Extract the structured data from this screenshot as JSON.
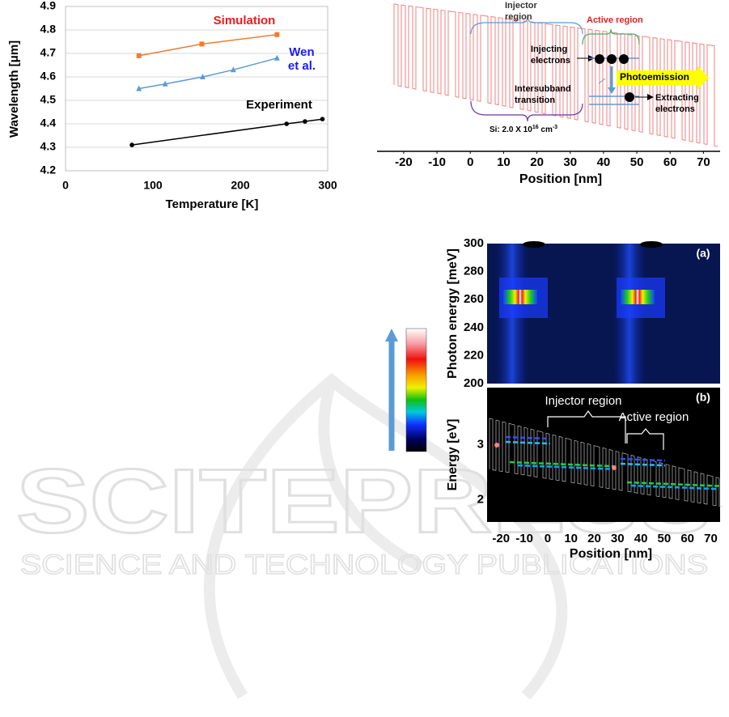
{
  "chart_data": [
    {
      "type": "line",
      "xlabel": "Temperature  [K]",
      "ylabel": "Wavelength [μm]",
      "xlim": [
        0,
        300
      ],
      "xticks": [
        0,
        100,
        200,
        300
      ],
      "ylim": [
        4.2,
        4.9
      ],
      "yticks": [
        4.2,
        4.3,
        4.4,
        4.5,
        4.6,
        4.7,
        4.8,
        4.9
      ],
      "grid": true,
      "series": [
        {
          "name": "Simulation",
          "color": "#ed7d31",
          "label_color": "#ee1c1c",
          "marker": "square",
          "x": [
            84,
            156,
            242
          ],
          "values": [
            4.69,
            4.74,
            4.78
          ]
        },
        {
          "name": "Wen\net al.",
          "color": "#5b9bd5",
          "label_color": "#1a1aff",
          "marker": "triangle",
          "x": [
            84,
            114,
            157,
            192,
            242
          ],
          "values": [
            4.55,
            4.57,
            4.6,
            4.63,
            4.68
          ]
        },
        {
          "name": "Experiment",
          "color": "#000000",
          "label_color": "#000000",
          "marker": "circle",
          "x": [
            76,
            253,
            274,
            294
          ],
          "values": [
            4.31,
            4.4,
            4.41,
            4.42
          ]
        }
      ]
    },
    {
      "type": "band-diagram",
      "xlabel": "Position [nm]",
      "xlim": [
        -28,
        75
      ],
      "xticks": [
        -20,
        -10,
        0,
        10,
        20,
        30,
        40,
        50,
        60,
        70
      ],
      "annotations": {
        "injector": "Injector\nregion",
        "active": "Active region",
        "injecting": "Injecting\nelectrons",
        "transition": "Intersubband\ntransition",
        "photoemission": "Photoemission",
        "extracting": "Extracting\nelectrons",
        "doping": "Si: 2.0 X 10",
        "doping_exp": "16",
        "doping_unit": " cm",
        "doping_unit_exp": "-3"
      }
    },
    {
      "type": "heatmap",
      "panel": "(a)",
      "ylabel": "Photon energy [meV]",
      "ylim": [
        200,
        300
      ],
      "yticks": [
        200,
        220,
        240,
        260,
        280,
        300
      ]
    },
    {
      "type": "heatmap",
      "panel": "(b)",
      "ylabel": "Energy [eV]",
      "ylim": [
        1.6,
        4.03
      ],
      "yticks": [
        2,
        3
      ],
      "xlabel": "Position [nm]",
      "xlim": [
        -26,
        74
      ],
      "xticks": [
        -20,
        -10,
        0,
        10,
        20,
        30,
        40,
        50,
        60,
        70
      ],
      "annotations": {
        "injector": "Injector region",
        "active": "Active region"
      }
    }
  ],
  "watermark": {
    "logo": "SCITEPRESS",
    "tagline": "SCIENCE AND TECHNOLOGY PUBLICATIONS"
  }
}
